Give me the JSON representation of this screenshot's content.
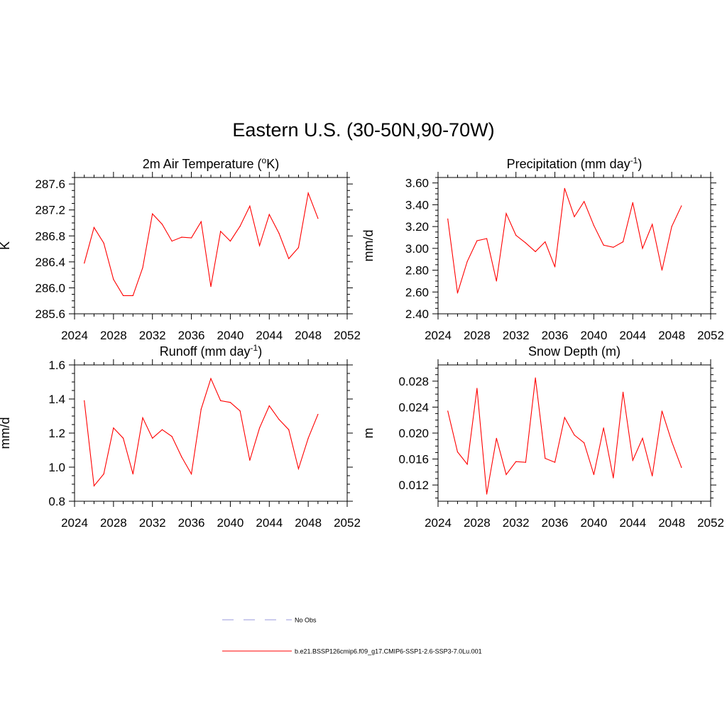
{
  "title": "Eastern U.S. (30-50N,90-70W)",
  "legend": {
    "entries": [
      {
        "label": "No Obs",
        "color": "#9999dd",
        "dash": true
      },
      {
        "label": "b.e21.BSSP126cmip6.f09_g17.CMIP6-SSP1-2.6-SSP3-7.0Lu.001",
        "color": "#ff0000",
        "dash": false
      }
    ]
  },
  "chart_data": [
    {
      "type": "line",
      "title": "2m Air Temperature (",
      "title_sup": "o",
      "title_suffix": "K)",
      "ylabel": "K",
      "xlim": [
        2024,
        2052
      ],
      "ylim": [
        285.6,
        287.7
      ],
      "xticks": [
        "2024",
        "2028",
        "2032",
        "2036",
        "2040",
        "2044",
        "2048",
        "2052"
      ],
      "yticks": [
        "285.6",
        "286.0",
        "286.4",
        "286.8",
        "287.2",
        "287.6"
      ],
      "x": [
        2025,
        2026,
        2027,
        2028,
        2029,
        2030,
        2031,
        2032,
        2033,
        2034,
        2035,
        2036,
        2037,
        2038,
        2039,
        2040,
        2041,
        2042,
        2043,
        2044,
        2045,
        2046,
        2047,
        2048,
        2049
      ],
      "series": [
        {
          "color": "#ff0000",
          "values": [
            286.38,
            286.93,
            286.69,
            286.13,
            285.88,
            285.88,
            286.31,
            287.14,
            286.98,
            286.72,
            286.78,
            286.77,
            287.02,
            286.02,
            286.87,
            286.72,
            286.95,
            287.26,
            286.65,
            287.13,
            286.84,
            286.45,
            286.62,
            287.46,
            287.07
          ]
        }
      ]
    },
    {
      "type": "line",
      "title": "Precipitation (mm day",
      "title_sup": "-1",
      "title_suffix": ")",
      "ylabel": "mm/d",
      "xlim": [
        2024,
        2052
      ],
      "ylim": [
        2.4,
        3.65
      ],
      "xticks": [
        "2024",
        "2028",
        "2032",
        "2036",
        "2040",
        "2044",
        "2048",
        "2052"
      ],
      "yticks": [
        "2.40",
        "2.60",
        "2.80",
        "3.00",
        "3.20",
        "3.40",
        "3.60"
      ],
      "x": [
        2025,
        2026,
        2027,
        2028,
        2029,
        2030,
        2031,
        2032,
        2033,
        2034,
        2035,
        2036,
        2037,
        2038,
        2039,
        2040,
        2041,
        2042,
        2043,
        2044,
        2045,
        2046,
        2047,
        2048,
        2049
      ],
      "series": [
        {
          "color": "#ff0000",
          "values": [
            3.27,
            2.59,
            2.88,
            3.07,
            3.09,
            2.7,
            3.32,
            3.12,
            3.05,
            2.97,
            3.06,
            2.83,
            3.55,
            3.29,
            3.43,
            3.21,
            3.03,
            3.01,
            3.06,
            3.42,
            3.0,
            3.22,
            2.8,
            3.2,
            3.39
          ]
        }
      ]
    },
    {
      "type": "line",
      "title": "Runoff (mm day",
      "title_sup": "-1",
      "title_suffix": ")",
      "ylabel": "mm/d",
      "xlim": [
        2024,
        2052
      ],
      "ylim": [
        0.8,
        1.6
      ],
      "xticks": [
        "2024",
        "2028",
        "2032",
        "2036",
        "2040",
        "2044",
        "2048",
        "2052"
      ],
      "yticks": [
        "0.8",
        "1.0",
        "1.2",
        "1.4",
        "1.6"
      ],
      "x": [
        2025,
        2026,
        2027,
        2028,
        2029,
        2030,
        2031,
        2032,
        2033,
        2034,
        2035,
        2036,
        2037,
        2038,
        2039,
        2040,
        2041,
        2042,
        2043,
        2044,
        2045,
        2046,
        2047,
        2048,
        2049
      ],
      "series": [
        {
          "color": "#ff0000",
          "values": [
            1.39,
            0.89,
            0.96,
            1.23,
            1.17,
            0.96,
            1.29,
            1.17,
            1.22,
            1.18,
            1.06,
            0.96,
            1.34,
            1.52,
            1.39,
            1.38,
            1.33,
            1.04,
            1.23,
            1.36,
            1.28,
            1.22,
            0.99,
            1.17,
            1.31
          ]
        }
      ]
    },
    {
      "type": "line",
      "title": "Snow Depth (m)",
      "title_sup": "",
      "title_suffix": "",
      "ylabel": "m",
      "xlim": [
        2024,
        2052
      ],
      "ylim": [
        0.0095,
        0.0305
      ],
      "xticks": [
        "2024",
        "2028",
        "2032",
        "2036",
        "2040",
        "2044",
        "2048",
        "2052"
      ],
      "yticks": [
        "0.012",
        "0.016",
        "0.020",
        "0.024",
        "0.028"
      ],
      "x": [
        2025,
        2026,
        2027,
        2028,
        2029,
        2030,
        2031,
        2032,
        2033,
        2034,
        2035,
        2036,
        2037,
        2038,
        2039,
        2040,
        2041,
        2042,
        2043,
        2044,
        2045,
        2046,
        2047,
        2048,
        2049
      ],
      "series": [
        {
          "color": "#ff0000",
          "values": [
            0.0234,
            0.0171,
            0.0152,
            0.0269,
            0.0106,
            0.0192,
            0.0136,
            0.0156,
            0.0155,
            0.0285,
            0.0161,
            0.0155,
            0.0224,
            0.0197,
            0.0185,
            0.0136,
            0.0208,
            0.0131,
            0.0263,
            0.0158,
            0.0192,
            0.0134,
            0.0234,
            0.0187,
            0.0147
          ]
        }
      ]
    }
  ]
}
